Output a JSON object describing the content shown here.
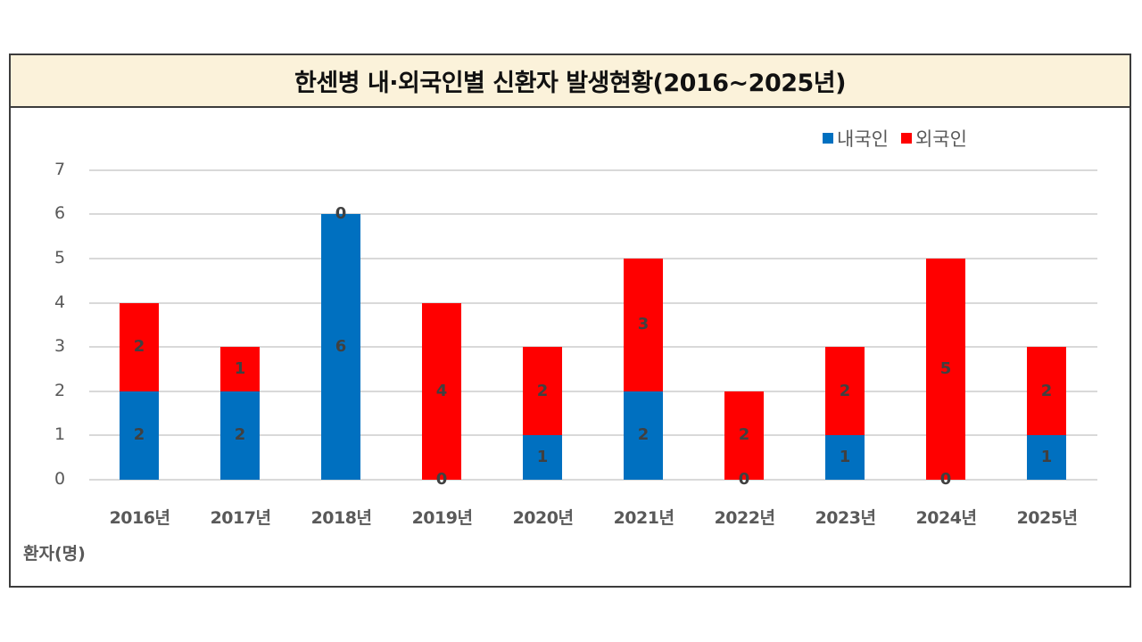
{
  "title": "한센병 내·외국인별 신환자 발생현황(2016~2025년)",
  "colors": {
    "domestic": "#0070c0",
    "foreign": "#ff0000",
    "title_bg": "#fbf2da",
    "grid": "#d9d9d9"
  },
  "legend": [
    {
      "label": "내국인",
      "color": "#0070c0"
    },
    {
      "label": "외국인",
      "color": "#ff0000"
    }
  ],
  "y_axis": {
    "label": "환자(명)",
    "ticks": [
      "0",
      "1",
      "2",
      "3",
      "4",
      "5",
      "6",
      "7"
    ]
  },
  "chart_data": {
    "type": "bar",
    "stacked": true,
    "title": "한센병 내·외국인별 신환자 발생현황(2016~2025년)",
    "xlabel": "",
    "ylabel": "환자(명)",
    "ylim": [
      0,
      7
    ],
    "grid": true,
    "legend_position": "top-right",
    "categories": [
      "2016년",
      "2017년",
      "2018년",
      "2019년",
      "2020년",
      "2021년",
      "2022년",
      "2023년",
      "2024년",
      "2025년"
    ],
    "series": [
      {
        "name": "내국인",
        "color": "#0070c0",
        "values": [
          2,
          2,
          6,
          0,
          1,
          2,
          0,
          1,
          0,
          1
        ]
      },
      {
        "name": "외국인",
        "color": "#ff0000",
        "values": [
          2,
          1,
          0,
          4,
          2,
          3,
          2,
          2,
          5,
          2
        ]
      }
    ],
    "totals": [
      4,
      3,
      6,
      4,
      3,
      5,
      2,
      3,
      5,
      3
    ]
  }
}
